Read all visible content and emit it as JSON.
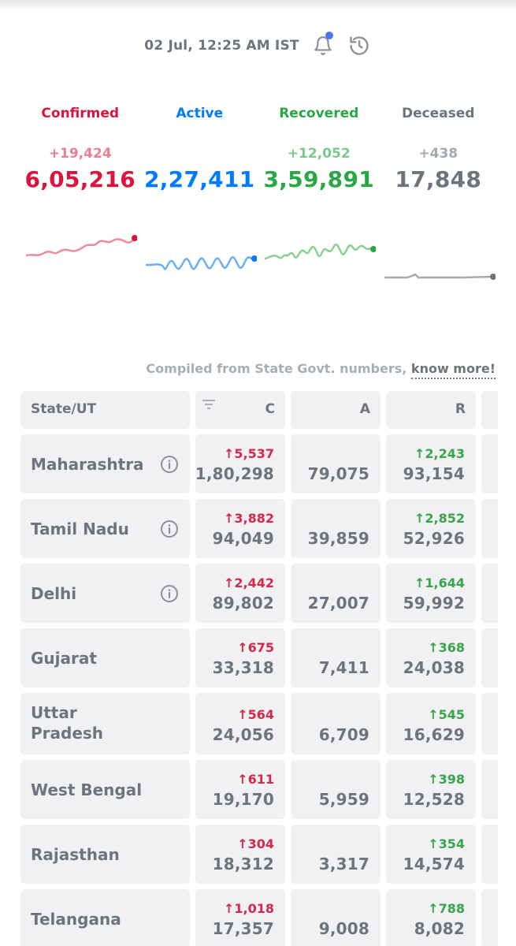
{
  "header": {
    "timestamp": "02 Jul, 12:25 AM IST",
    "icons": [
      "bell-icon",
      "history-icon"
    ]
  },
  "stats": [
    {
      "label": "Confirmed",
      "delta": "+19,424",
      "total": "6,05,216",
      "color": "#dc143c",
      "delta_color": "#ef7d8f"
    },
    {
      "label": "Active",
      "delta": "",
      "total": "2,27,411",
      "color": "#007bff",
      "delta_color": "#4da3ff"
    },
    {
      "label": "Recovered",
      "delta": "+12,052",
      "total": "3,59,891",
      "color": "#28a745",
      "delta_color": "#7ac98a"
    },
    {
      "label": "Deceased",
      "delta": "+438",
      "total": "17,848",
      "color": "#6c757d",
      "delta_color": "#a3aab0"
    }
  ],
  "colors": {
    "confirmed": "#dc143c",
    "active": "#007bff",
    "recovered": "#28a745",
    "deceased": "#6c757d",
    "spark_confirmed": "#f08a98",
    "spark_active": "#6aaef5",
    "spark_recovered": "#8ad08f",
    "spark_deceased": "#a5abb0"
  },
  "note": {
    "text": "Compiled from State Govt. numbers,",
    "link": "know more!"
  },
  "table": {
    "headers": {
      "state": "State/UT",
      "c": "C",
      "a": "A",
      "r": "R"
    },
    "rows": [
      {
        "state": "Maharashtra",
        "info": true,
        "c_delta": "↑5,537",
        "c": "1,80,298",
        "a": "79,075",
        "r_delta": "↑2,243",
        "r": "93,154"
      },
      {
        "state": "Tamil Nadu",
        "info": true,
        "c_delta": "↑3,882",
        "c": "94,049",
        "a": "39,859",
        "r_delta": "↑2,852",
        "r": "52,926"
      },
      {
        "state": "Delhi",
        "info": true,
        "c_delta": "↑2,442",
        "c": "89,802",
        "a": "27,007",
        "r_delta": "↑1,644",
        "r": "59,992"
      },
      {
        "state": "Gujarat",
        "info": false,
        "c_delta": "↑675",
        "c": "33,318",
        "a": "7,411",
        "r_delta": "↑368",
        "r": "24,038"
      },
      {
        "state": "Uttar Pradesh",
        "info": false,
        "c_delta": "↑564",
        "c": "24,056",
        "a": "6,709",
        "r_delta": "↑545",
        "r": "16,629"
      },
      {
        "state": "West Bengal",
        "info": false,
        "c_delta": "↑611",
        "c": "19,170",
        "a": "5,959",
        "r_delta": "↑398",
        "r": "12,528"
      },
      {
        "state": "Rajasthan",
        "info": false,
        "c_delta": "↑304",
        "c": "18,312",
        "a": "3,317",
        "r_delta": "↑354",
        "r": "14,574"
      },
      {
        "state": "Telangana",
        "info": false,
        "c_delta": "↑1,018",
        "c": "17,357",
        "a": "9,008",
        "r_delta": "↑788",
        "r": "8,082"
      }
    ]
  }
}
